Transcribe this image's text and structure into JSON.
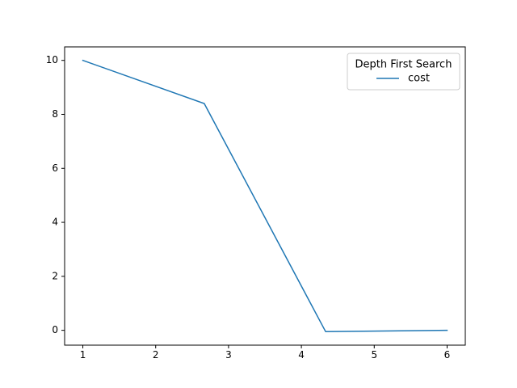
{
  "chart_data": {
    "type": "line",
    "title": "",
    "xlabel": "",
    "ylabel": "",
    "xlim": [
      0.75,
      6.25
    ],
    "ylim": [
      -0.55,
      10.5
    ],
    "x_ticks": [
      1,
      2,
      3,
      4,
      5,
      6
    ],
    "y_ticks": [
      0,
      2,
      4,
      6,
      8,
      10
    ],
    "x_tick_labels": [
      "1",
      "2",
      "3",
      "4",
      "5",
      "6"
    ],
    "y_tick_labels": [
      "0",
      "2",
      "4",
      "6",
      "8",
      "10"
    ],
    "grid": false,
    "legend": {
      "title": "Depth First Search",
      "placement": "top-right"
    },
    "series": [
      {
        "name": "cost",
        "color": "#1f77b4",
        "x": [
          1,
          2.667,
          4.333,
          6
        ],
        "y": [
          10,
          8.4,
          -0.05,
          0
        ]
      }
    ]
  }
}
